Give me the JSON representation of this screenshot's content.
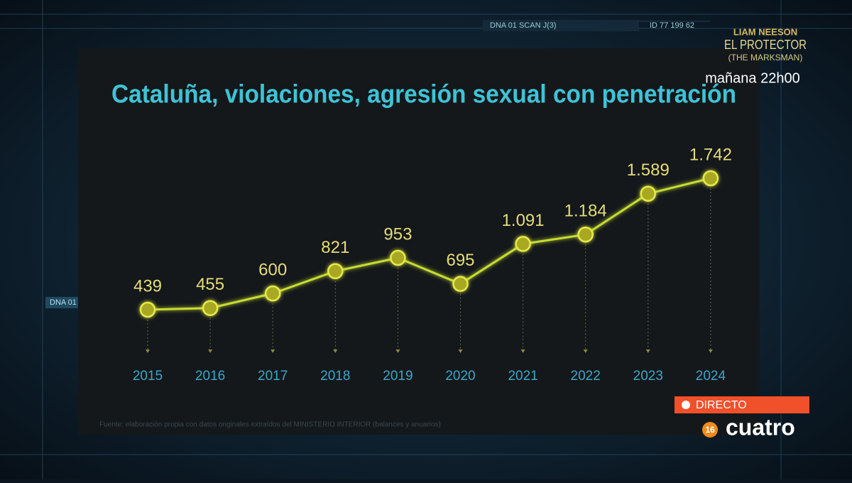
{
  "chart_data": {
    "type": "line",
    "title": "Cataluña, violaciones, agresión sexual con penetración",
    "categories": [
      "2015",
      "2016",
      "2017",
      "2018",
      "2019",
      "2020",
      "2021",
      "2022",
      "2023",
      "2024"
    ],
    "values": [
      439,
      455,
      600,
      821,
      953,
      695,
      1091,
      1184,
      1589,
      1742
    ],
    "value_labels": [
      "439",
      "455",
      "600",
      "821",
      "953",
      "695",
      "1.091",
      "1.184",
      "1.589",
      "1.742"
    ],
    "color": "#c8dc32",
    "source": "Fuente: elaboración propia con datos originales extraídos del MINISTERIO INTERIOR (balances y anuarios)"
  },
  "overlay": {
    "promo_actor": "LIAM NEESON",
    "promo_title": "EL PROTECTOR",
    "promo_subtitle": "(THE MARKSMAN)",
    "promo_time": "mañana 22h00",
    "live": "DIRECTO",
    "rating": "16",
    "channel": "cuatro",
    "bg_scan": "DNA 01 SCAN J(3)",
    "bg_id": "ID 77 199 62",
    "bg_dna": "DNA 01"
  }
}
